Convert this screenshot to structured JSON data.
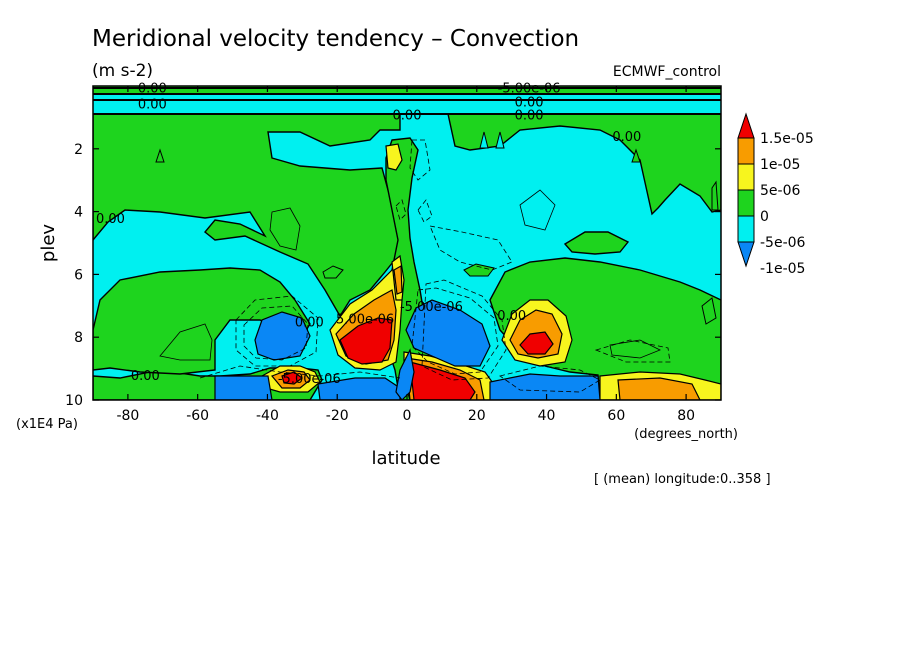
{
  "chart_data": {
    "type": "contour",
    "title": "Meridional velocity tendency – Convection",
    "units": "(m s-2)",
    "experiment": "ECMWF_control",
    "xlabel": "latitude",
    "x_units": "(degrees_north)",
    "ylabel": "plev",
    "y_units": "(x1E4 Pa)",
    "xlim": [
      -90,
      90
    ],
    "ylim": [
      10,
      0
    ],
    "y_inverted": true,
    "x_ticks": [
      -80,
      -60,
      -40,
      -20,
      0,
      20,
      40,
      60,
      80
    ],
    "y_ticks": [
      2,
      4,
      6,
      8,
      10
    ],
    "averaging_note": "[ (mean) longitude:0..358 ]",
    "colorbar": {
      "labels": [
        "1.5e-05",
        "1e-05",
        "5e-06",
        "0",
        "-5e-06",
        "-1e-05"
      ],
      "colors": [
        "#f00000",
        "#f89c00",
        "#f7f51e",
        "#1ed41e",
        "#00f0f0",
        "#0a87f5"
      ]
    },
    "contour_labels": [
      {
        "text": "0.00",
        "lat": -73,
        "plev": 0.05
      },
      {
        "text": "0.00",
        "lat": -73,
        "plev": 0.55
      },
      {
        "text": "-5.00e-06",
        "lat": 35,
        "plev": 0.05
      },
      {
        "text": "0.00",
        "lat": 35,
        "plev": 0.5
      },
      {
        "text": "0.00",
        "lat": 35,
        "plev": 0.9
      },
      {
        "text": "0.00",
        "lat": 0,
        "plev": 0.9
      },
      {
        "text": "0.00",
        "lat": 63,
        "plev": 1.6
      },
      {
        "text": "0.00",
        "lat": -85,
        "plev": 4.2
      },
      {
        "text": "0.00",
        "lat": -28,
        "plev": 7.5
      },
      {
        "text": "5.00e-06",
        "lat": -12,
        "plev": 7.4
      },
      {
        "text": "0.00",
        "lat": 30,
        "plev": 7.3
      },
      {
        "text": "-5.00e-06",
        "lat": 7,
        "plev": 7.0
      },
      {
        "text": "0.00",
        "lat": -75,
        "plev": 9.2
      },
      {
        "text": "-5.00e-06",
        "lat": -28,
        "plev": 9.3
      }
    ],
    "features": [
      {
        "sign": "positive",
        "level": "1.5e-05",
        "lat": -12,
        "plev": 8.5
      },
      {
        "sign": "positive",
        "level": "1.5e-05",
        "lat": 8,
        "plev": 9.4
      },
      {
        "sign": "positive",
        "level": "1.5e-05",
        "lat": -35,
        "plev": 9.3
      },
      {
        "sign": "positive",
        "level": "1.5e-05",
        "lat": 37,
        "plev": 8.2
      },
      {
        "sign": "negative",
        "level": "-1e-05",
        "lat": 12,
        "plev": 8.4
      },
      {
        "sign": "negative",
        "level": "-1e-05",
        "lat": -40,
        "plev": 8.0
      },
      {
        "sign": "negative",
        "level": "-1e-05",
        "lat": -42,
        "plev": 9.6
      },
      {
        "sign": "negative",
        "level": "-1e-05",
        "lat": 42,
        "plev": 9.6
      }
    ]
  }
}
